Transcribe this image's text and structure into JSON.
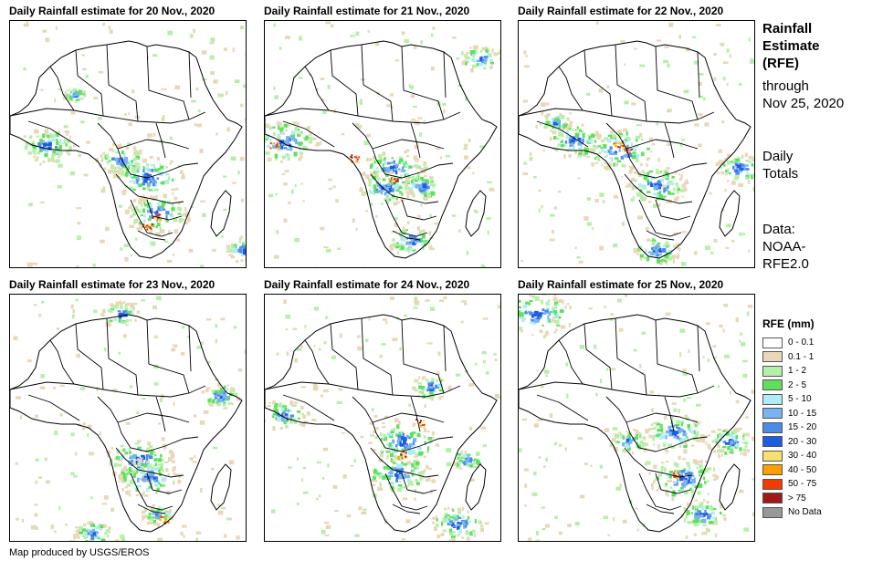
{
  "panels": [
    {
      "title": "Daily Rainfall estimate for 20 Nov., 2020"
    },
    {
      "title": "Daily Rainfall estimate for 21 Nov., 2020"
    },
    {
      "title": "Daily Rainfall estimate for 22 Nov., 2020"
    },
    {
      "title": "Daily Rainfall estimate for 23 Nov., 2020"
    },
    {
      "title": "Daily Rainfall estimate for 24 Nov., 2020"
    },
    {
      "title": "Daily Rainfall estimate for 25 Nov., 2020"
    }
  ],
  "side": {
    "title_line1": "Rainfall",
    "title_line2": "Estimate",
    "title_line3": "(RFE)",
    "through_line1": "through",
    "through_line2": "Nov 25, 2020",
    "daily_line1": "Daily",
    "daily_line2": "Totals",
    "data_line1": "Data:",
    "data_line2": "NOAA-",
    "data_line3": "RFE2.0"
  },
  "legend": {
    "title": "RFE (mm)",
    "items": [
      {
        "label": "0 - 0.1",
        "color": "#ffffff"
      },
      {
        "label": "0.1 - 1",
        "color": "#e8d8b8"
      },
      {
        "label": "1 - 2",
        "color": "#b4f0a8"
      },
      {
        "label": "2 - 5",
        "color": "#5ee05e"
      },
      {
        "label": "5 - 10",
        "color": "#b0ecf4"
      },
      {
        "label": "10 - 15",
        "color": "#78b4f0"
      },
      {
        "label": "15 - 20",
        "color": "#4c8ce8"
      },
      {
        "label": "20 - 30",
        "color": "#1e5ce0"
      },
      {
        "label": "30 - 40",
        "color": "#f8e070"
      },
      {
        "label": "40 - 50",
        "color": "#f8a000"
      },
      {
        "label": "50 - 75",
        "color": "#f03c00"
      },
      {
        "label": "> 75",
        "color": "#a01818"
      },
      {
        "label": "No Data",
        "color": "#989898"
      }
    ]
  },
  "credit": "Map produced by USGS/EROS"
}
